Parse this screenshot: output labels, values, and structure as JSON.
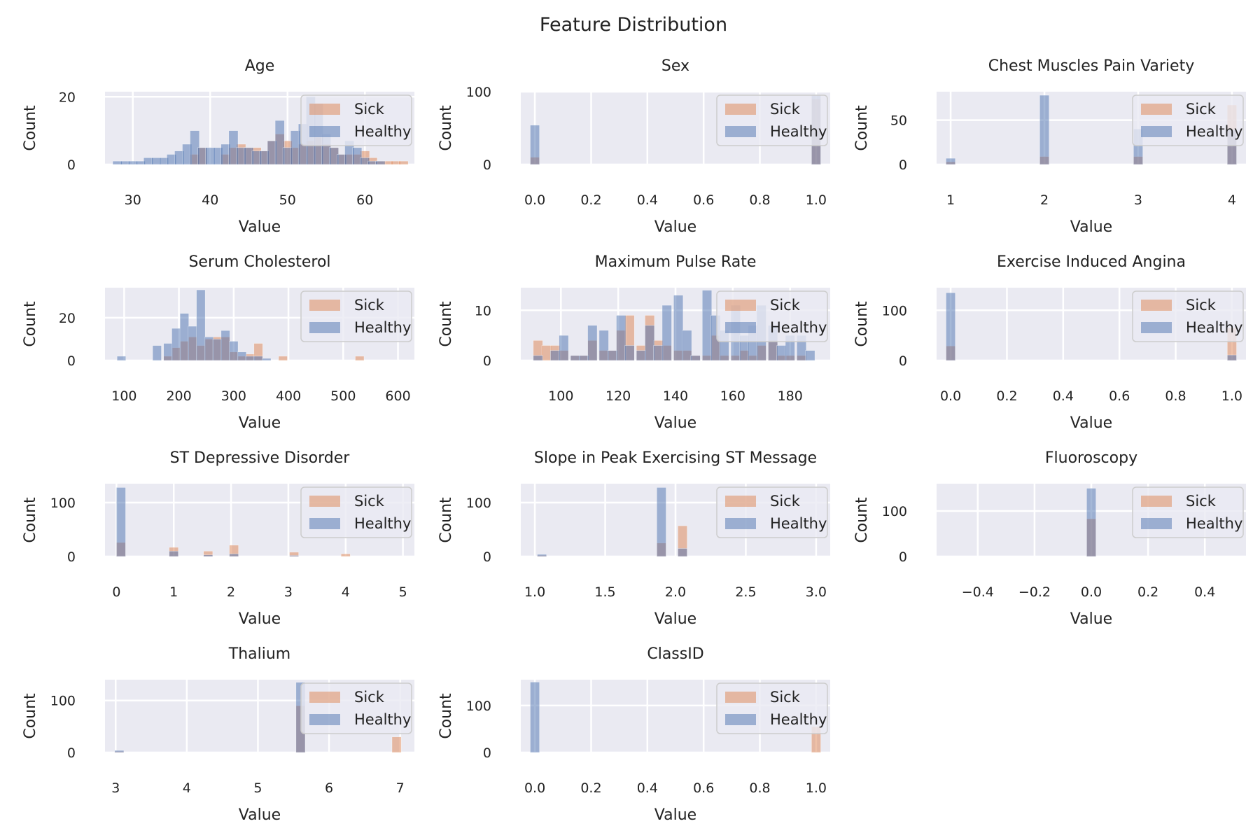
{
  "figure_title": "Feature Distribution",
  "colors": {
    "sick": "#dd8452",
    "healthy": "#4c72b0",
    "panel_bg": "#eaeaf2",
    "grid": "#ffffff"
  },
  "chart_data": [
    {
      "type": "bar",
      "title": "Age",
      "xlabel": "Value",
      "ylabel": "Count",
      "xlim": [
        26.4,
        66.4
      ],
      "ylim": [
        0,
        21.5
      ],
      "xticks": [
        30,
        40,
        50,
        60
      ],
      "yticks": [
        0,
        20
      ],
      "legend": [
        "Sick",
        "Healthy"
      ],
      "legend_position": "upper right",
      "grid": true,
      "bin_width": 1.2,
      "series": [
        {
          "name": "Sick",
          "x": [
            38,
            39,
            42,
            43,
            44,
            45,
            46,
            47,
            48,
            49,
            50,
            51,
            52,
            53,
            54,
            55,
            56,
            57,
            58,
            59,
            60,
            61,
            62,
            63,
            64,
            65
          ],
          "values": [
            3,
            5,
            3,
            5,
            6,
            5,
            5,
            4,
            7,
            9,
            7,
            5,
            6,
            7,
            8,
            6,
            5,
            3,
            3,
            3,
            4,
            2,
            1,
            1,
            1,
            1
          ]
        },
        {
          "name": "Healthy",
          "x": [
            28,
            29,
            30,
            31,
            32,
            33,
            34,
            35,
            36,
            37,
            38,
            39,
            40,
            41,
            42,
            43,
            44,
            45,
            46,
            47,
            48,
            49,
            50,
            51,
            52,
            53,
            54,
            55,
            56,
            57,
            58,
            59,
            60,
            61,
            62
          ],
          "values": [
            1,
            1,
            1,
            1,
            2,
            2,
            2,
            3,
            4,
            6,
            10,
            5,
            5,
            5,
            6,
            10,
            5,
            5,
            4,
            4,
            7,
            13,
            5,
            10,
            12,
            20,
            18,
            9,
            5,
            3,
            7,
            5,
            2,
            1,
            1
          ]
        }
      ]
    },
    {
      "type": "bar",
      "title": "Sex",
      "xlabel": "Value",
      "ylabel": "Count",
      "xlim": [
        -0.05,
        1.05
      ],
      "ylim": [
        0,
        100
      ],
      "xticks": [
        0.0,
        0.2,
        0.4,
        0.6,
        0.8,
        1.0
      ],
      "yticks": [
        0,
        100
      ],
      "legend": [
        "Sick",
        "Healthy"
      ],
      "legend_position": "upper right",
      "grid": true,
      "bin_width": 0.033,
      "series": [
        {
          "name": "Sick",
          "x": [
            0.0,
            1.0
          ],
          "values": [
            10,
            90
          ]
        },
        {
          "name": "Healthy",
          "x": [
            0.0,
            1.0
          ],
          "values": [
            54,
            96
          ]
        }
      ]
    },
    {
      "type": "bar",
      "title": "Chest Muscles Pain Variety",
      "xlabel": "Value",
      "ylabel": "Count",
      "xlim": [
        0.85,
        4.15
      ],
      "ylim": [
        0,
        82
      ],
      "xticks": [
        1,
        2,
        3,
        4
      ],
      "yticks": [
        0,
        50
      ],
      "legend": [
        "Sick",
        "Healthy"
      ],
      "legend_position": "upper right",
      "grid": true,
      "bin_width": 0.1,
      "series": [
        {
          "name": "Sick",
          "x": [
            1,
            2,
            3,
            4
          ],
          "values": [
            3,
            9,
            9,
            67
          ]
        },
        {
          "name": "Healthy",
          "x": [
            1,
            2,
            3,
            4
          ],
          "values": [
            7,
            78,
            40,
            39
          ]
        }
      ]
    },
    {
      "type": "bar",
      "title": "Serum Cholesterol",
      "xlabel": "Value",
      "ylabel": "Count",
      "xlim": [
        65,
        630
      ],
      "ylim": [
        0,
        34
      ],
      "xticks": [
        100,
        200,
        300,
        400,
        500,
        600
      ],
      "yticks": [
        0,
        20
      ],
      "legend": [
        "Sick",
        "Healthy"
      ],
      "legend_position": "upper right",
      "grid": true,
      "bin_width": 16,
      "series": [
        {
          "name": "Sick",
          "x": [
            180,
            195,
            210,
            225,
            240,
            255,
            270,
            285,
            300,
            315,
            330,
            345,
            390,
            530
          ],
          "values": [
            2,
            6,
            9,
            11,
            7,
            10,
            11,
            11,
            4,
            2,
            3,
            8,
            2,
            2
          ]
        },
        {
          "name": "Healthy",
          "x": [
            95,
            160,
            180,
            195,
            210,
            225,
            240,
            255,
            270,
            285,
            300,
            315,
            330,
            345,
            360
          ],
          "values": [
            2,
            7,
            8,
            15,
            22,
            16,
            33,
            11,
            10,
            14,
            9,
            4,
            2,
            2,
            1
          ]
        }
      ]
    },
    {
      "type": "bar",
      "title": "Maximum Pulse Rate",
      "xlabel": "Value",
      "ylabel": "Count",
      "xlim": [
        86,
        194
      ],
      "ylim": [
        0,
        14.5
      ],
      "xticks": [
        100,
        120,
        140,
        160,
        180
      ],
      "yticks": [
        0,
        10
      ],
      "legend": [
        "Sick",
        "Healthy"
      ],
      "legend_position": "upper right",
      "grid": true,
      "bin_width": 3.3,
      "series": [
        {
          "name": "Sick",
          "x": [
            92,
            95,
            98,
            101,
            105,
            108,
            111,
            115,
            118,
            121,
            124,
            128,
            131,
            134,
            137,
            141,
            144,
            147,
            151,
            154,
            157,
            161,
            164,
            167,
            170,
            174,
            177,
            180,
            184
          ],
          "values": [
            4,
            3,
            3,
            2,
            1,
            1,
            4,
            2,
            2,
            6,
            9,
            3,
            9,
            4,
            3,
            2,
            2,
            1,
            1,
            5,
            1,
            1,
            2,
            1,
            3,
            4,
            1,
            1,
            1
          ]
        },
        {
          "name": "Healthy",
          "x": [
            92,
            98,
            101,
            105,
            108,
            111,
            115,
            118,
            121,
            124,
            128,
            131,
            134,
            137,
            141,
            144,
            147,
            151,
            154,
            157,
            161,
            164,
            167,
            170,
            174,
            177,
            180,
            184,
            187
          ],
          "values": [
            1,
            2,
            5,
            1,
            1,
            7,
            6,
            2,
            9,
            3,
            2,
            7,
            3,
            11,
            13,
            6,
            1,
            14,
            9,
            6,
            11,
            5,
            7,
            11,
            7,
            3,
            5,
            5,
            2
          ]
        }
      ]
    },
    {
      "type": "bar",
      "title": "Exercise Induced Angina",
      "xlabel": "Value",
      "ylabel": "Count",
      "xlim": [
        -0.05,
        1.05
      ],
      "ylim": [
        0,
        145
      ],
      "xticks": [
        0.0,
        0.2,
        0.4,
        0.6,
        0.8,
        1.0
      ],
      "yticks": [
        0,
        100
      ],
      "legend": [
        "Sick",
        "Healthy"
      ],
      "legend_position": "upper right",
      "grid": true,
      "bin_width": 0.033,
      "series": [
        {
          "name": "Sick",
          "x": [
            0.0,
            1.0
          ],
          "values": [
            29,
            65
          ]
        },
        {
          "name": "Healthy",
          "x": [
            0.0,
            1.0
          ],
          "values": [
            135,
            11
          ]
        }
      ]
    },
    {
      "type": "bar",
      "title": "ST Depressive Disorder",
      "xlabel": "Value",
      "ylabel": "Count",
      "xlim": [
        -0.2,
        5.2
      ],
      "ylim": [
        0,
        135
      ],
      "xticks": [
        0,
        1,
        2,
        3,
        4,
        5
      ],
      "yticks": [
        0,
        100
      ],
      "legend": [
        "Sick",
        "Healthy"
      ],
      "legend_position": "upper right",
      "grid": true,
      "bin_width": 0.16,
      "series": [
        {
          "name": "Sick",
          "x": [
            0.08,
            1.0,
            1.6,
            2.05,
            3.1,
            4.0
          ],
          "values": [
            26,
            17,
            10,
            21,
            8,
            5
          ]
        },
        {
          "name": "Healthy",
          "x": [
            0.08,
            1.0,
            1.6,
            2.05,
            3.1
          ],
          "values": [
            128,
            10,
            3,
            5,
            2
          ]
        }
      ]
    },
    {
      "type": "bar",
      "title": "Slope in Peak Exercising ST Message",
      "xlabel": "Value",
      "ylabel": "Count",
      "xlim": [
        0.9,
        3.1
      ],
      "ylim": [
        0,
        135
      ],
      "xticks": [
        1.0,
        1.5,
        2.0,
        2.5,
        3.0
      ],
      "yticks": [
        0,
        100
      ],
      "legend": [
        "Sick",
        "Healthy"
      ],
      "legend_position": "upper right",
      "grid": true,
      "bin_width": 0.066,
      "series": [
        {
          "name": "Sick",
          "x": [
            1.05,
            1.9,
            2.05
          ],
          "values": [
            2,
            25,
            57
          ]
        },
        {
          "name": "Healthy",
          "x": [
            1.05,
            1.9,
            2.05
          ],
          "values": [
            4,
            128,
            15
          ]
        }
      ]
    },
    {
      "type": "bar",
      "title": "Fluoroscopy",
      "xlabel": "Value",
      "ylabel": "Count",
      "xlim": [
        -0.545,
        0.545
      ],
      "ylim": [
        0,
        160
      ],
      "xticks": [
        -0.4,
        -0.2,
        0.0,
        0.2,
        0.4
      ],
      "yticks": [
        0,
        100
      ],
      "legend": [
        "Sick",
        "Healthy"
      ],
      "legend_position": "upper right",
      "grid": true,
      "bin_width": 0.033,
      "series": [
        {
          "name": "Sick",
          "x": [
            0.0
          ],
          "values": [
            83
          ]
        },
        {
          "name": "Healthy",
          "x": [
            0.0
          ],
          "values": [
            150
          ]
        }
      ]
    },
    {
      "type": "bar",
      "title": "Thalium",
      "xlabel": "Value",
      "ylabel": "Count",
      "xlim": [
        2.85,
        7.2
      ],
      "ylim": [
        0,
        140
      ],
      "xticks": [
        3,
        4,
        5,
        6,
        7
      ],
      "yticks": [
        0,
        100
      ],
      "legend": [
        "Sick",
        "Healthy"
      ],
      "legend_position": "upper right",
      "grid": true,
      "bin_width": 0.13,
      "series": [
        {
          "name": "Sick",
          "x": [
            3.05,
            5.6,
            6.95
          ],
          "values": [
            2,
            90,
            30
          ]
        },
        {
          "name": "Healthy",
          "x": [
            3.05,
            5.6
          ],
          "values": [
            4,
            135
          ]
        }
      ]
    },
    {
      "type": "bar",
      "title": "ClassID",
      "xlabel": "Value",
      "ylabel": "Count",
      "xlim": [
        -0.05,
        1.05
      ],
      "ylim": [
        0,
        155
      ],
      "xticks": [
        0.0,
        0.2,
        0.4,
        0.6,
        0.8,
        1.0
      ],
      "yticks": [
        0,
        100
      ],
      "legend": [
        "Sick",
        "Healthy"
      ],
      "legend_position": "upper right",
      "grid": true,
      "bin_width": 0.033,
      "series": [
        {
          "name": "Sick",
          "x": [
            1.0
          ],
          "values": [
            55
          ]
        },
        {
          "name": "Healthy",
          "x": [
            0.0
          ],
          "values": [
            150
          ]
        }
      ]
    }
  ]
}
